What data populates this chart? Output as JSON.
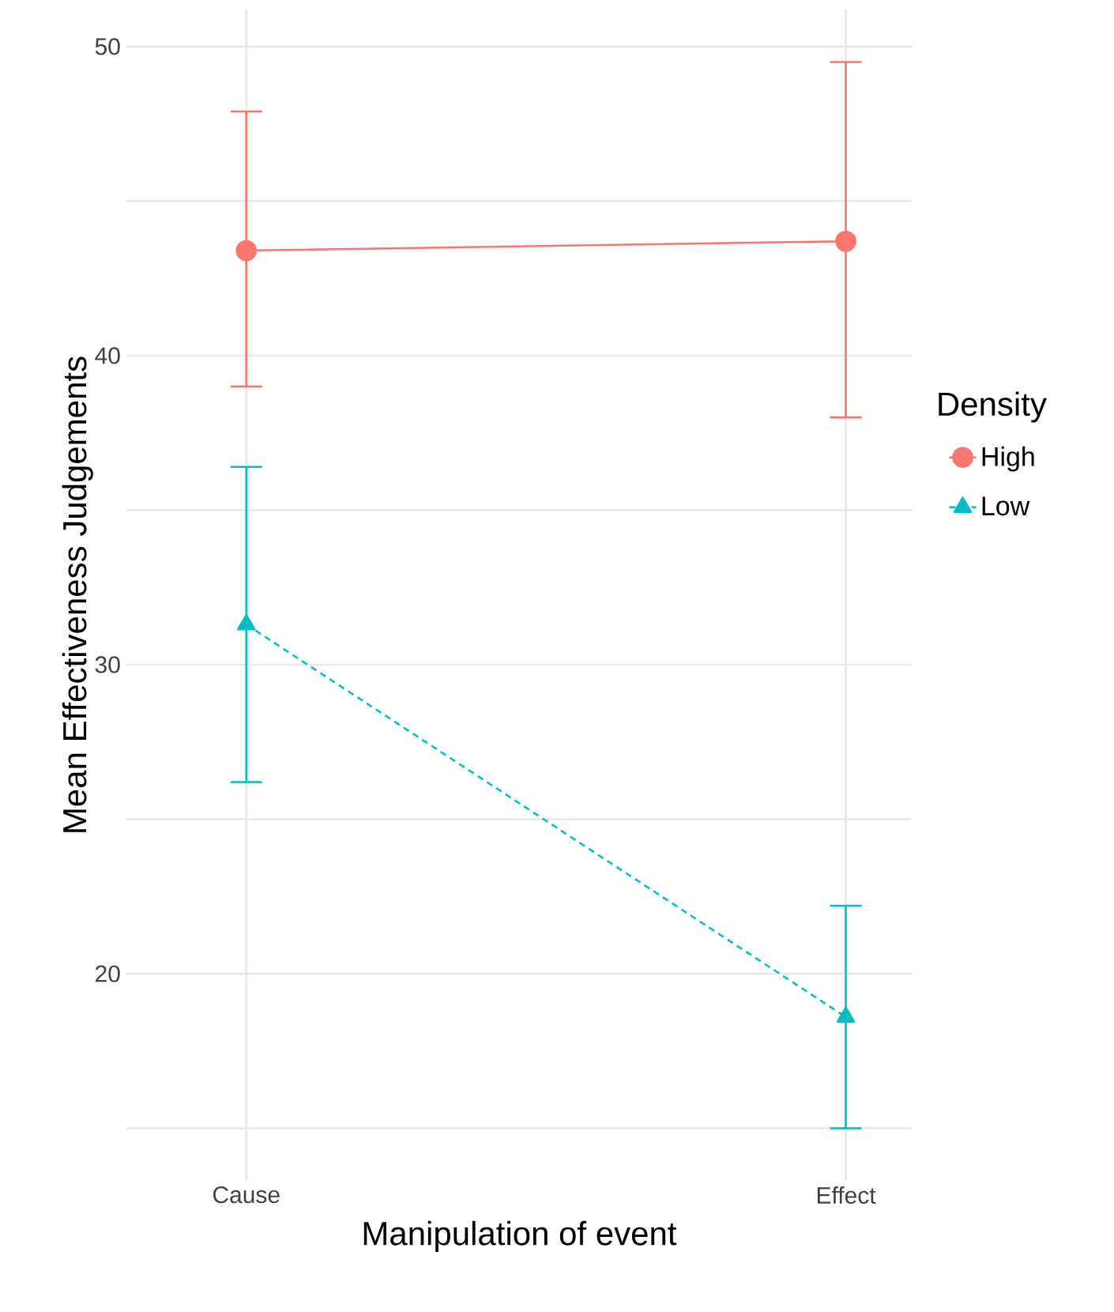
{
  "chart_data": {
    "type": "line",
    "xlabel": "Manipulation of event",
    "ylabel": "Mean Effectiveness Judgements",
    "legend_title": "Density",
    "categories": [
      "Cause",
      "Effect"
    ],
    "series": [
      {
        "name": "High",
        "color": "#f8766d",
        "values": [
          43.4,
          43.7
        ],
        "errors": [
          [
            39.0,
            47.9
          ],
          [
            38.0,
            49.5
          ]
        ],
        "marker": "circle",
        "line_style": "solid"
      },
      {
        "name": "Low",
        "color": "#00bfc4",
        "values": [
          31.3,
          18.6
        ],
        "errors": [
          [
            26.2,
            36.4
          ],
          [
            15.0,
            22.2
          ]
        ],
        "marker": "triangle",
        "line_style": "dashed"
      }
    ],
    "ylim": [
      13.3,
      51.2
    ],
    "yticks": [
      {
        "value": 15,
        "label": null
      },
      20,
      {
        "value": 25,
        "label": null
      },
      30,
      {
        "value": 35,
        "label": null
      },
      40,
      {
        "value": 45,
        "label": null
      },
      50
    ],
    "grid": true,
    "legend": "right"
  }
}
